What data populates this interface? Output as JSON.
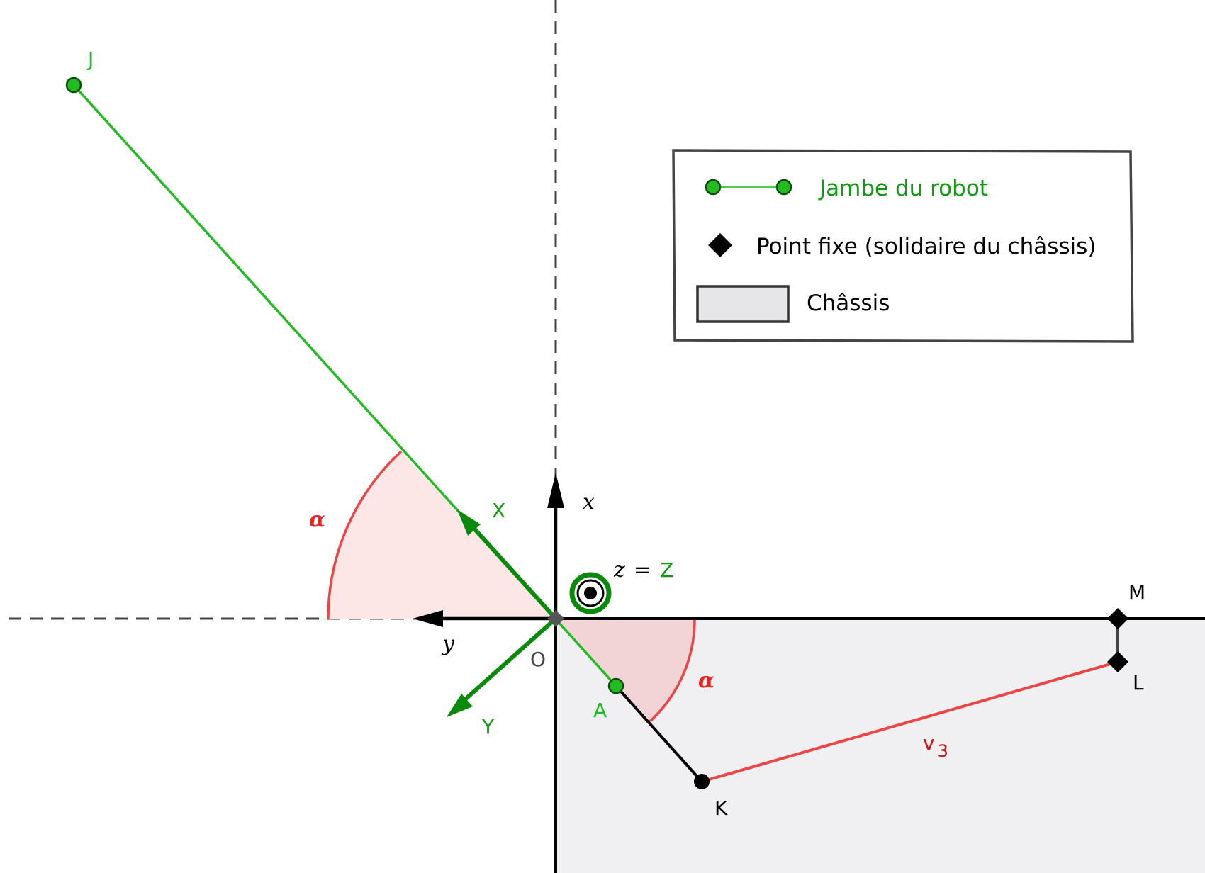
{
  "colors": {
    "leg": "#22bb22",
    "leg_dark": "#0a8a0a",
    "label_green": "#119911",
    "angle": "#ee4444",
    "angle_fill": "#f9c6c6",
    "axis": "#000000",
    "dash": "#444444",
    "chassis_fill": "#f0f0f2",
    "legend_border": "#444444",
    "legend_swatch": "#e6e6e8"
  },
  "points": {
    "J": "J",
    "A": "A",
    "O": "O",
    "K": "K",
    "L": "L",
    "M": "M"
  },
  "axes": {
    "x": "x",
    "y": "y",
    "X": "X",
    "Y": "Y",
    "z": "z",
    "eq": "=",
    "Z": "Z"
  },
  "angle_label": "α",
  "segment_v3": {
    "base": "v",
    "sub": "3"
  },
  "legend": {
    "leg": "Jambe du robot",
    "fixed_point": "Point fixe (solidaire du châssis)",
    "chassis": "Châssis"
  }
}
